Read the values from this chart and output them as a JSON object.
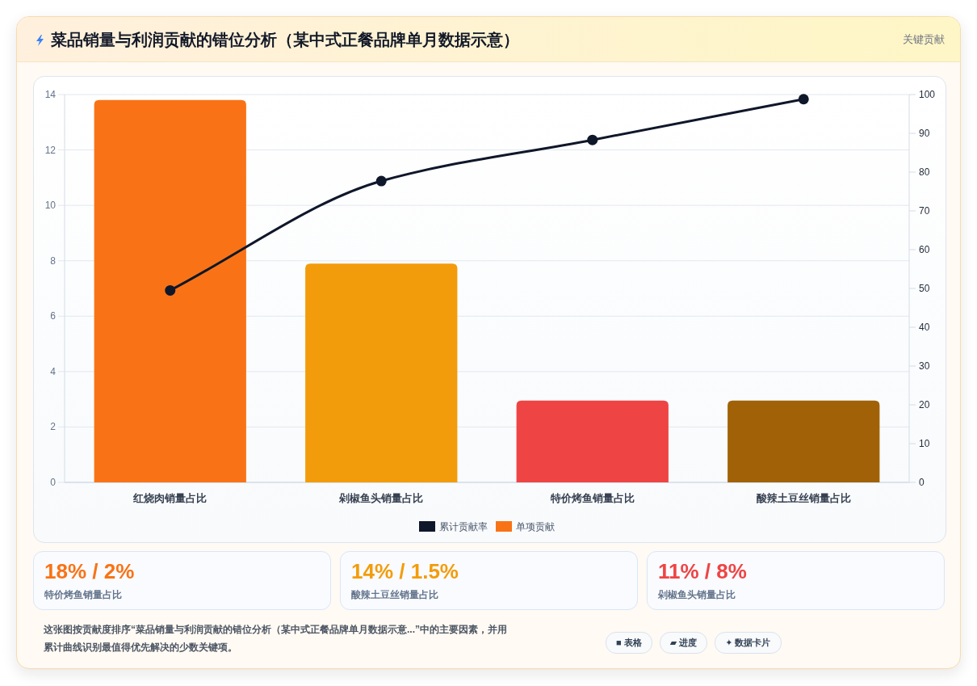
{
  "chart_data": [
    {
      "type": "bar",
      "title": "菜品销量与利润贡献的错位分析（某中式正餐品牌单月数据示意）",
      "categories": [
        "红烧肉销量占比",
        "剁椒鱼头销量占比",
        "特价烤鱼销量占比",
        "酸辣土豆丝销量占比"
      ],
      "series": [
        {
          "name": "累计贡献率",
          "type": "line",
          "axis": "y2",
          "color": "#0f172a",
          "values": [
            49.5,
            77.7,
            88.3,
            98.8
          ]
        },
        {
          "name": "单项贡献",
          "colors": [
            "#f97316",
            "#f39c0b",
            "#ef4444",
            "#a16207"
          ],
          "values": [
            13.8,
            7.9,
            2.95,
            2.95
          ]
        }
      ],
      "ylim": [
        0,
        14
      ],
      "yticks": [
        0,
        2,
        4,
        6,
        8,
        10,
        12,
        14
      ],
      "y2lim": [
        0,
        100
      ],
      "y2ticks": [
        0,
        10,
        20,
        30,
        40,
        50,
        60,
        70,
        80,
        90,
        100
      ],
      "grid": "y",
      "legend": "bottom",
      "marker": "circle",
      "line_style": "solid",
      "annotations": [
        "关键贡献",
        "这张图按贡献度排序“菜品销量与利润贡献的错位分析（某中式正餐品牌单月数据示意...”中的主要因素，并用累计曲线识别最值得优先解决的少数关键项。",
        "■ 表格",
        "▰ 进度",
        "✦ 数据卡片"
      ]
    },
    {
      "type": "other",
      "title": "18% / 2%",
      "subtitle": "特价烤鱼销量占比"
    },
    {
      "type": "other",
      "title": "14% / 1.5%",
      "subtitle": "酸辣土豆丝销量占比"
    },
    {
      "type": "other",
      "title": "11% / 8%",
      "subtitle": "剁椒鱼头销量占比"
    }
  ]
}
